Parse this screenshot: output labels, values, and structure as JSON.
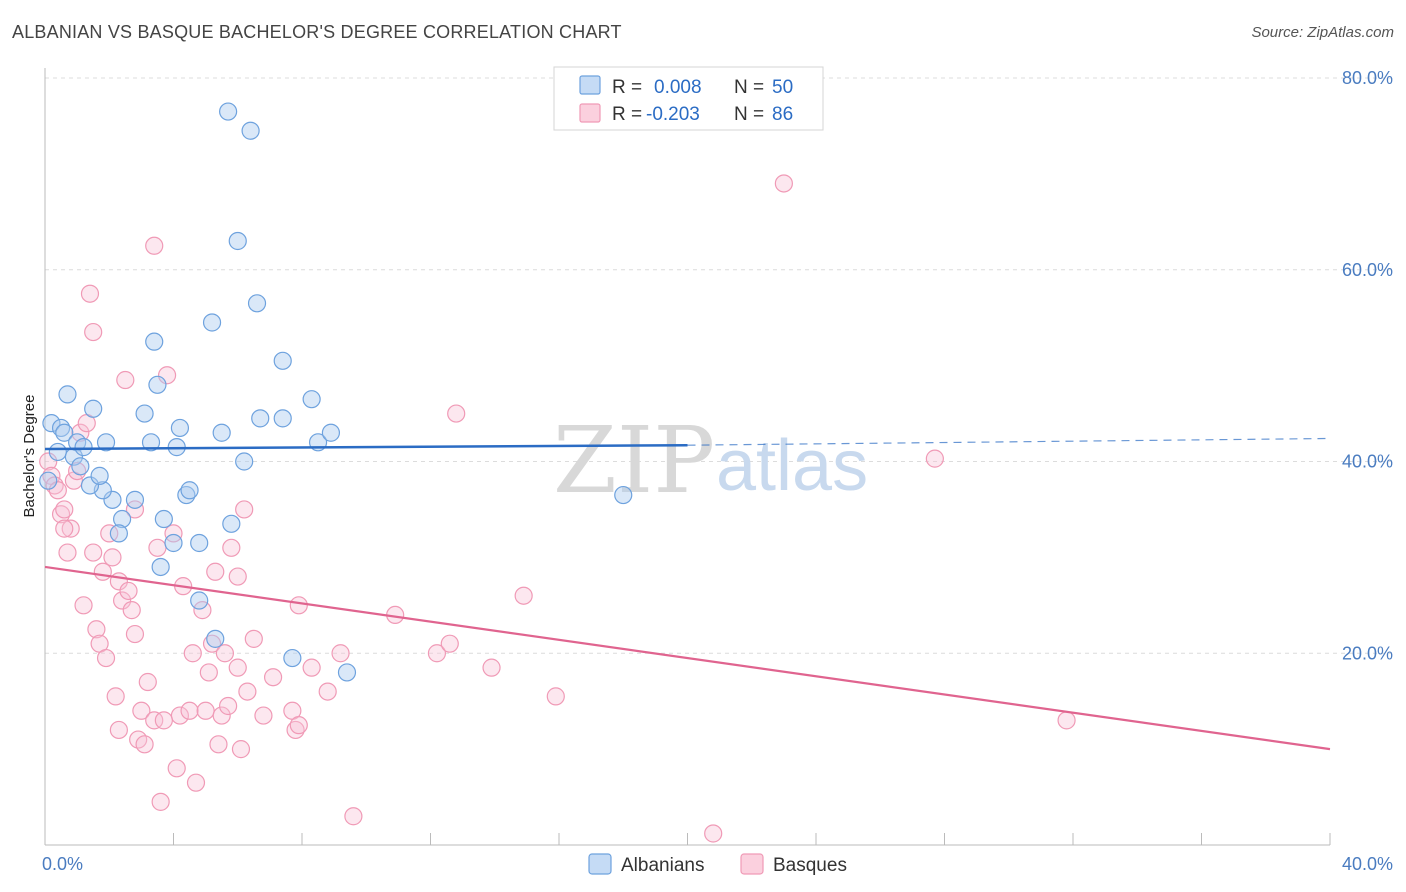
{
  "title": "ALBANIAN VS BASQUE BACHELOR'S DEGREE CORRELATION CHART",
  "source": "Source: ZipAtlas.com",
  "watermark": {
    "zip": "ZIP",
    "atlas": "atlas"
  },
  "legend_top": {
    "rows": [
      {
        "r_label": "R =",
        "r_value": "0.008",
        "n_label": "N =",
        "n_value": "50"
      },
      {
        "r_label": "R =",
        "r_value": "-0.203",
        "n_label": "N =",
        "n_value": "86"
      }
    ]
  },
  "colors": {
    "albanians": "#6ea2de",
    "basques": "#f09ab6",
    "albanians_line": "#2b6cc4",
    "basques_line": "#e0648f",
    "tick": "#4a7cc0"
  },
  "chart_data": {
    "type": "scatter",
    "title": "ALBANIAN VS BASQUE BACHELOR'S DEGREE CORRELATION CHART",
    "xlabel": "",
    "ylabel": "Bachelor's Degree",
    "xlim": [
      0,
      40
    ],
    "ylim": [
      0,
      80
    ],
    "x_tick_labels": [
      "0.0%",
      "40.0%"
    ],
    "y_ticks": [
      20,
      40,
      60,
      80
    ],
    "y_tick_labels": [
      "20.0%",
      "40.0%",
      "60.0%",
      "80.0%"
    ],
    "grid": true,
    "legend_position": "bottom-center",
    "series": [
      {
        "name": "Albanians",
        "r": 0.008,
        "n": 50,
        "trend": {
          "x0": 0,
          "y0": 41.3,
          "x1": 20,
          "y1": 41.7,
          "dashed_to_x": 40,
          "dashed_y": 42.4
        },
        "points": [
          [
            0.2,
            44
          ],
          [
            0.5,
            43.5
          ],
          [
            0.4,
            41
          ],
          [
            0.6,
            43
          ],
          [
            1.0,
            42
          ],
          [
            0.9,
            40.5
          ],
          [
            1.1,
            39.5
          ],
          [
            1.2,
            41.5
          ],
          [
            0.7,
            47
          ],
          [
            1.5,
            45.5
          ],
          [
            1.9,
            42
          ],
          [
            2.1,
            36
          ],
          [
            1.8,
            37
          ],
          [
            1.4,
            37.5
          ],
          [
            2.4,
            34
          ],
          [
            2.3,
            32.5
          ],
          [
            2.8,
            36
          ],
          [
            3.1,
            45
          ],
          [
            3.3,
            42
          ],
          [
            3.4,
            52.5
          ],
          [
            3.5,
            48
          ],
          [
            3.6,
            29
          ],
          [
            3.7,
            34
          ],
          [
            4.0,
            31.5
          ],
          [
            4.1,
            41.5
          ],
          [
            4.2,
            43.5
          ],
          [
            4.4,
            36.5
          ],
          [
            4.5,
            37
          ],
          [
            4.8,
            31.5
          ],
          [
            4.8,
            25.5
          ],
          [
            5.2,
            54.5
          ],
          [
            5.3,
            21.5
          ],
          [
            5.5,
            43
          ],
          [
            5.7,
            76.5
          ],
          [
            5.8,
            33.5
          ],
          [
            6.0,
            63
          ],
          [
            6.2,
            40
          ],
          [
            6.4,
            74.5
          ],
          [
            6.6,
            56.5
          ],
          [
            6.7,
            44.5
          ],
          [
            7.4,
            44.5
          ],
          [
            7.4,
            50.5
          ],
          [
            7.7,
            19.5
          ],
          [
            8.3,
            46.5
          ],
          [
            8.5,
            42
          ],
          [
            8.9,
            43
          ],
          [
            9.4,
            18
          ],
          [
            18.0,
            36.5
          ],
          [
            0.1,
            38
          ],
          [
            1.7,
            38.5
          ]
        ]
      },
      {
        "name": "Basques",
        "r": -0.203,
        "n": 86,
        "trend": {
          "x0": 0,
          "y0": 29,
          "x1": 40,
          "y1": 10
        },
        "points": [
          [
            0.1,
            40
          ],
          [
            0.2,
            38.5
          ],
          [
            0.3,
            37.5
          ],
          [
            0.4,
            37
          ],
          [
            0.5,
            34.5
          ],
          [
            0.6,
            35
          ],
          [
            0.7,
            30.5
          ],
          [
            0.8,
            33
          ],
          [
            0.9,
            38
          ],
          [
            1.0,
            39
          ],
          [
            1.1,
            43
          ],
          [
            1.3,
            44
          ],
          [
            1.4,
            57.5
          ],
          [
            1.5,
            53.5
          ],
          [
            1.5,
            30.5
          ],
          [
            1.6,
            22.5
          ],
          [
            1.7,
            21
          ],
          [
            1.8,
            28.5
          ],
          [
            1.9,
            19.5
          ],
          [
            2.0,
            32.5
          ],
          [
            2.1,
            30
          ],
          [
            2.2,
            15.5
          ],
          [
            2.3,
            12
          ],
          [
            2.3,
            27.5
          ],
          [
            2.4,
            25.5
          ],
          [
            2.5,
            48.5
          ],
          [
            2.6,
            26.5
          ],
          [
            2.7,
            24.5
          ],
          [
            2.8,
            35
          ],
          [
            2.9,
            11
          ],
          [
            3.0,
            14
          ],
          [
            3.1,
            10.5
          ],
          [
            3.2,
            17
          ],
          [
            3.4,
            13
          ],
          [
            3.5,
            31
          ],
          [
            3.4,
            62.5
          ],
          [
            3.6,
            4.5
          ],
          [
            3.8,
            49
          ],
          [
            4.0,
            32.5
          ],
          [
            4.2,
            13.5
          ],
          [
            4.3,
            27
          ],
          [
            4.5,
            14
          ],
          [
            4.6,
            20
          ],
          [
            4.7,
            6.5
          ],
          [
            4.9,
            24.5
          ],
          [
            5.0,
            14
          ],
          [
            5.1,
            18
          ],
          [
            5.2,
            21
          ],
          [
            5.3,
            28.5
          ],
          [
            5.4,
            10.5
          ],
          [
            5.5,
            13.5
          ],
          [
            5.6,
            20
          ],
          [
            5.7,
            14.5
          ],
          [
            5.8,
            31
          ],
          [
            6.0,
            18.5
          ],
          [
            6.0,
            28
          ],
          [
            6.1,
            10
          ],
          [
            6.2,
            35
          ],
          [
            6.5,
            21.5
          ],
          [
            6.8,
            13.5
          ],
          [
            7.1,
            17.5
          ],
          [
            7.7,
            14
          ],
          [
            7.8,
            12
          ],
          [
            7.9,
            12.5
          ],
          [
            7.9,
            25
          ],
          [
            8.3,
            18.5
          ],
          [
            8.8,
            16
          ],
          [
            9.6,
            3
          ],
          [
            10.9,
            24
          ],
          [
            12.2,
            20
          ],
          [
            12.6,
            21
          ],
          [
            12.8,
            45
          ],
          [
            13.9,
            18.5
          ],
          [
            14.9,
            26
          ],
          [
            15.9,
            15.5
          ],
          [
            20.8,
            1.2
          ],
          [
            23.0,
            69
          ],
          [
            27.7,
            40.3
          ],
          [
            31.8,
            13
          ],
          [
            0.6,
            33
          ],
          [
            1.2,
            25
          ],
          [
            2.8,
            22
          ],
          [
            3.7,
            13
          ],
          [
            4.1,
            8
          ],
          [
            6.3,
            16
          ],
          [
            9.2,
            20
          ]
        ]
      }
    ]
  },
  "legend_bottom": {
    "items": [
      {
        "label": "Albanians"
      },
      {
        "label": "Basques"
      }
    ]
  }
}
